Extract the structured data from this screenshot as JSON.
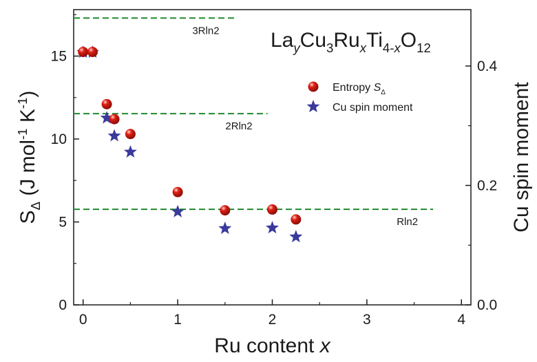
{
  "chart_data": {
    "type": "scatter",
    "title": "",
    "formula": [
      {
        "t": "La",
        "s": "n"
      },
      {
        "t": "y",
        "s": "sub",
        "italic": true
      },
      {
        "t": "Cu",
        "s": "n"
      },
      {
        "t": "3",
        "s": "sub"
      },
      {
        "t": "Ru",
        "s": "n"
      },
      {
        "t": "x",
        "s": "sub",
        "italic": true
      },
      {
        "t": "Ti",
        "s": "n"
      },
      {
        "t": "4-",
        "s": "sub"
      },
      {
        "t": "x",
        "s": "sub",
        "italic": true
      },
      {
        "t": "O",
        "s": "n"
      },
      {
        "t": "12",
        "s": "sub"
      }
    ],
    "xlabel": {
      "text": "Ru content ",
      "var": "x"
    },
    "ylabel_left": [
      {
        "t": "S",
        "s": "n"
      },
      {
        "t": "Δ",
        "s": "sub"
      },
      {
        "t": " (J mol",
        "s": "n"
      },
      {
        "t": "-1",
        "s": "sup"
      },
      {
        "t": " K",
        "s": "n"
      },
      {
        "t": "-1",
        "s": "sup"
      },
      {
        "t": ")",
        "s": "n"
      }
    ],
    "ylabel_right": "Cu spin moment",
    "xlim": [
      -0.1,
      4.1
    ],
    "ylim_left": [
      0,
      17.8
    ],
    "ylim_right": [
      0,
      0.4944
    ],
    "x_ticks": [
      "0",
      "1",
      "2",
      "3",
      "4"
    ],
    "y_ticks_left": [
      "0",
      "5",
      "10",
      "15"
    ],
    "y_ticks_right": [
      "0.0",
      "0.2",
      "0.4"
    ],
    "series": [
      {
        "name": "Entropy ",
        "name_sub": "S",
        "name_subsub": "Δ",
        "marker": "circle",
        "color": "#e02015",
        "axis": "left",
        "points": [
          {
            "x": 0.0,
            "y": 15.25
          },
          {
            "x": 0.1,
            "y": 15.25
          },
          {
            "x": 0.25,
            "y": 12.1
          },
          {
            "x": 0.33,
            "y": 11.2
          },
          {
            "x": 0.5,
            "y": 10.3
          },
          {
            "x": 1.0,
            "y": 6.8
          },
          {
            "x": 1.5,
            "y": 5.7
          },
          {
            "x": 2.0,
            "y": 5.75
          },
          {
            "x": 2.25,
            "y": 5.15
          }
        ]
      },
      {
        "name": "Cu spin moment",
        "marker": "star",
        "color": "#3a3a9c",
        "axis": "right",
        "points": [
          {
            "x": 0.0,
            "y": 0.423
          },
          {
            "x": 0.1,
            "y": 0.423
          },
          {
            "x": 0.25,
            "y": 0.313
          },
          {
            "x": 0.33,
            "y": 0.283
          },
          {
            "x": 0.5,
            "y": 0.256
          },
          {
            "x": 1.0,
            "y": 0.156
          },
          {
            "x": 1.5,
            "y": 0.128
          },
          {
            "x": 2.0,
            "y": 0.129
          },
          {
            "x": 2.25,
            "y": 0.114
          }
        ]
      }
    ],
    "reference_lines": [
      {
        "label": "3Rln2",
        "y": 17.29,
        "x_end": 1.6
      },
      {
        "label": "2Rln2",
        "y": 11.53,
        "x_end": 1.95
      },
      {
        "label": "Rln2",
        "y": 5.76,
        "x_end": 3.7
      }
    ],
    "legend_position": "upper-right",
    "colors": {
      "reference_line": "#1e8a2e",
      "axis": "#1a1a1a"
    }
  }
}
